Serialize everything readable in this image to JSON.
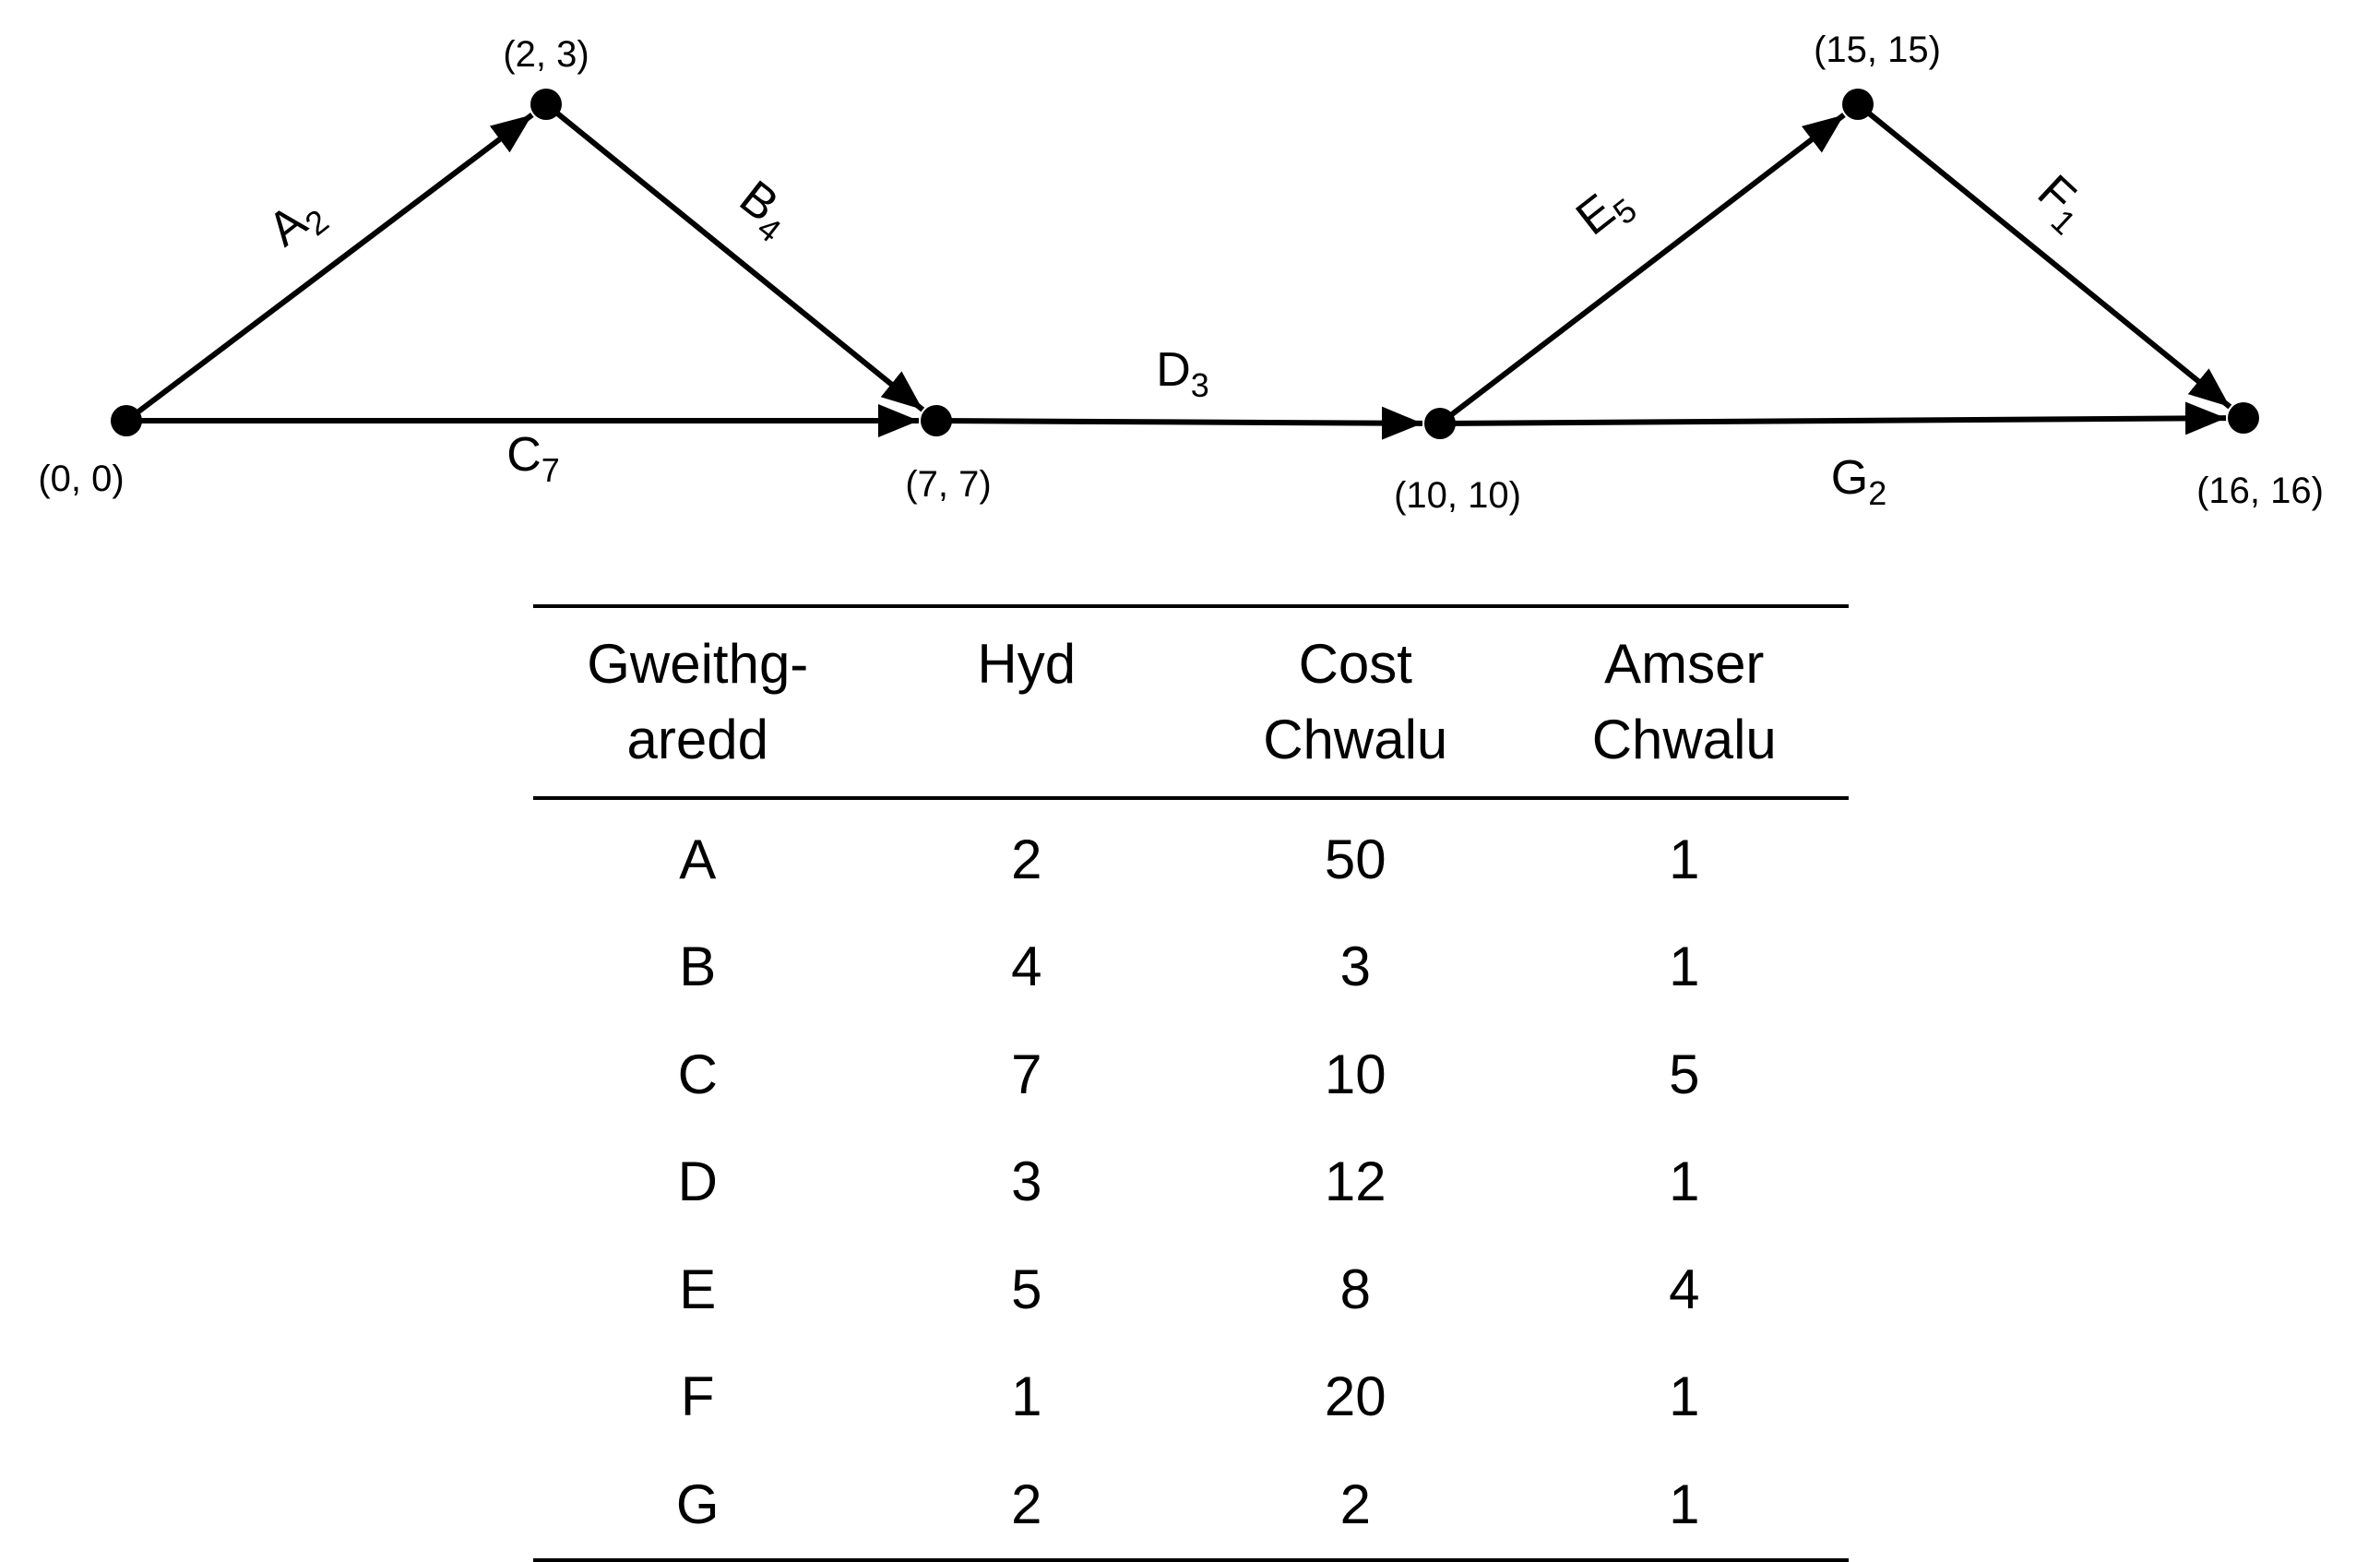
{
  "nodes": [
    {
      "id": "n0",
      "label": "(0, 0)"
    },
    {
      "id": "n1",
      "label": "(2, 3)"
    },
    {
      "id": "n2",
      "label": "(7, 7)"
    },
    {
      "id": "n3",
      "label": "(10, 10)"
    },
    {
      "id": "n4",
      "label": "(15, 15)"
    },
    {
      "id": "n5",
      "label": "(16, 16)"
    }
  ],
  "edges": [
    {
      "id": "A",
      "from": "n0",
      "to": "n1",
      "letter": "A",
      "sub": "2"
    },
    {
      "id": "B",
      "from": "n1",
      "to": "n2",
      "letter": "B",
      "sub": "4"
    },
    {
      "id": "C",
      "from": "n0",
      "to": "n2",
      "letter": "C",
      "sub": "7"
    },
    {
      "id": "D",
      "from": "n2",
      "to": "n3",
      "letter": "D",
      "sub": "3"
    },
    {
      "id": "E",
      "from": "n3",
      "to": "n4",
      "letter": "E",
      "sub": "5"
    },
    {
      "id": "F",
      "from": "n4",
      "to": "n5",
      "letter": "F",
      "sub": "1"
    },
    {
      "id": "G",
      "from": "n3",
      "to": "n5",
      "letter": "G",
      "sub": "2"
    }
  ],
  "table": {
    "headers": [
      "Gweithg-\naredd",
      "Hyd",
      "Cost\nChwalu",
      "Amser\nChwalu"
    ],
    "rows": [
      [
        "A",
        "2",
        "50",
        "1"
      ],
      [
        "B",
        "4",
        "3",
        "1"
      ],
      [
        "C",
        "7",
        "10",
        "5"
      ],
      [
        "D",
        "3",
        "12",
        "1"
      ],
      [
        "E",
        "5",
        "8",
        "4"
      ],
      [
        "F",
        "1",
        "20",
        "1"
      ],
      [
        "G",
        "2",
        "2",
        "1"
      ]
    ]
  }
}
